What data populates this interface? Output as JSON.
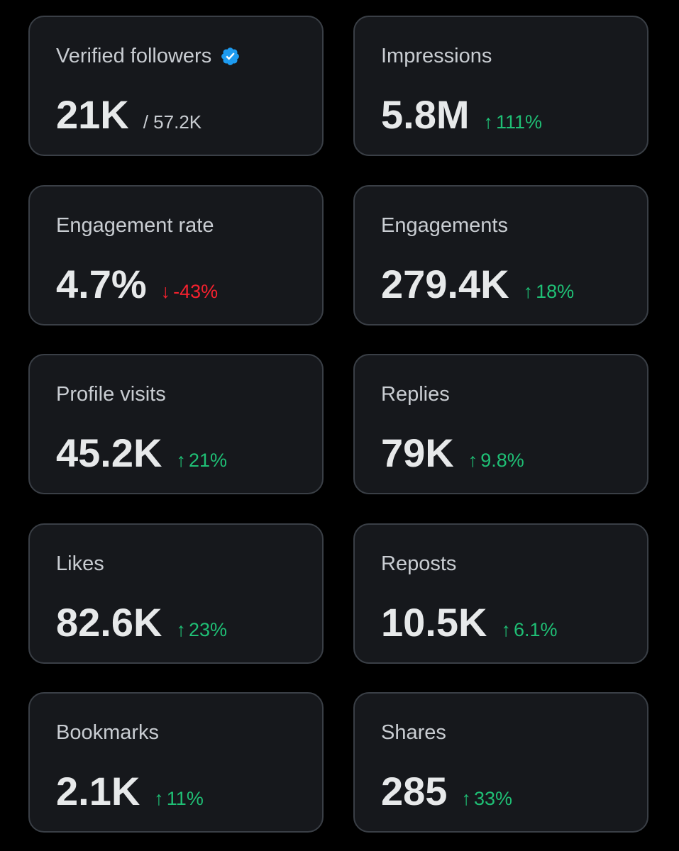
{
  "accent_colors": {
    "positive": "#1fbf75",
    "negative": "#f4212e",
    "verified": "#1d9bf0"
  },
  "cards": [
    {
      "label": "Verified followers",
      "value": "21K",
      "total": "/ 57.2K",
      "icon": "verified-badge-icon"
    },
    {
      "label": "Impressions",
      "value": "5.8M",
      "delta": "111%",
      "direction": "up"
    },
    {
      "label": "Engagement rate",
      "value": "4.7%",
      "delta": "-43%",
      "direction": "down"
    },
    {
      "label": "Engagements",
      "value": "279.4K",
      "delta": "18%",
      "direction": "up"
    },
    {
      "label": "Profile visits",
      "value": "45.2K",
      "delta": "21%",
      "direction": "up"
    },
    {
      "label": "Replies",
      "value": "79K",
      "delta": "9.8%",
      "direction": "up"
    },
    {
      "label": "Likes",
      "value": "82.6K",
      "delta": "23%",
      "direction": "up"
    },
    {
      "label": "Reposts",
      "value": "10.5K",
      "delta": "6.1%",
      "direction": "up"
    },
    {
      "label": "Bookmarks",
      "value": "2.1K",
      "delta": "11%",
      "direction": "up"
    },
    {
      "label": "Shares",
      "value": "285",
      "delta": "33%",
      "direction": "up"
    }
  ]
}
